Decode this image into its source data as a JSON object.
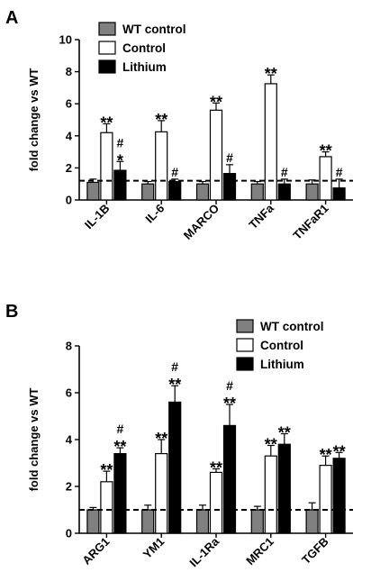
{
  "chart_data": [
    {
      "type": "bar",
      "panel_label": "A",
      "title": "",
      "xlabel": "",
      "ylabel": "fold change vs WT",
      "ylim": [
        0,
        10
      ],
      "yticks": [
        0,
        2,
        4,
        6,
        8,
        10
      ],
      "categories": [
        "IL-1B",
        "IL-6",
        "MARCO",
        "TNFa",
        "TNFaR1"
      ],
      "reference_line": 1.2,
      "legend_position": "top-left",
      "series": [
        {
          "name": "WT control",
          "color": "#808080",
          "values": [
            1.1,
            1.0,
            1.0,
            1.0,
            1.0
          ],
          "errors": [
            0.2,
            0.15,
            0.15,
            0.15,
            0.25
          ]
        },
        {
          "name": "Control",
          "color": "#ffffff",
          "values": [
            4.2,
            4.25,
            5.6,
            7.25,
            2.7
          ],
          "errors": [
            0.55,
            0.7,
            0.45,
            0.55,
            0.3
          ]
        },
        {
          "name": "Lithium",
          "color": "#000000",
          "values": [
            1.85,
            1.15,
            1.65,
            1.0,
            0.75
          ],
          "errors": [
            0.55,
            0.15,
            0.55,
            0.3,
            0.55
          ]
        }
      ],
      "annotations": [
        {
          "category": 0,
          "series": 1,
          "lines": [
            "**"
          ]
        },
        {
          "category": 0,
          "series": 2,
          "lines": [
            "#",
            "*"
          ]
        },
        {
          "category": 1,
          "series": 1,
          "lines": [
            "**"
          ]
        },
        {
          "category": 1,
          "series": 2,
          "lines": [
            "#"
          ]
        },
        {
          "category": 2,
          "series": 1,
          "lines": [
            "**"
          ]
        },
        {
          "category": 2,
          "series": 2,
          "lines": [
            "#"
          ]
        },
        {
          "category": 3,
          "series": 1,
          "lines": [
            "**"
          ]
        },
        {
          "category": 3,
          "series": 2,
          "lines": [
            "#"
          ]
        },
        {
          "category": 4,
          "series": 1,
          "lines": [
            "**"
          ]
        },
        {
          "category": 4,
          "series": 2,
          "lines": [
            "#"
          ]
        }
      ]
    },
    {
      "type": "bar",
      "panel_label": "B",
      "title": "",
      "xlabel": "",
      "ylabel": "fold change vs WT",
      "ylim": [
        0,
        8
      ],
      "yticks": [
        0,
        2,
        4,
        6,
        8
      ],
      "categories": [
        "ARG1",
        "YM1",
        "IL-1Ra",
        "MRC1",
        "TGFB"
      ],
      "reference_line": 1.0,
      "legend_position": "top-right",
      "series": [
        {
          "name": "WT control",
          "color": "#808080",
          "values": [
            1.0,
            1.0,
            1.0,
            1.0,
            1.0
          ],
          "errors": [
            0.1,
            0.2,
            0.2,
            0.15,
            0.3
          ]
        },
        {
          "name": "Control",
          "color": "#ffffff",
          "values": [
            2.2,
            3.4,
            2.6,
            3.3,
            2.9
          ],
          "errors": [
            0.45,
            0.6,
            0.15,
            0.45,
            0.4
          ]
        },
        {
          "name": "Lithium",
          "color": "#000000",
          "values": [
            3.4,
            5.6,
            4.6,
            3.8,
            3.2
          ],
          "errors": [
            0.25,
            0.7,
            0.9,
            0.45,
            0.25
          ]
        }
      ],
      "annotations": [
        {
          "category": 0,
          "series": 1,
          "lines": [
            "**"
          ]
        },
        {
          "category": 0,
          "series": 2,
          "lines": [
            "#",
            "**"
          ]
        },
        {
          "category": 1,
          "series": 1,
          "lines": [
            "**"
          ]
        },
        {
          "category": 1,
          "series": 2,
          "lines": [
            "#",
            "**"
          ]
        },
        {
          "category": 2,
          "series": 1,
          "lines": [
            "**"
          ]
        },
        {
          "category": 2,
          "series": 2,
          "lines": [
            "#",
            "**"
          ]
        },
        {
          "category": 3,
          "series": 1,
          "lines": [
            "**"
          ]
        },
        {
          "category": 3,
          "series": 2,
          "lines": [
            "**"
          ]
        },
        {
          "category": 4,
          "series": 1,
          "lines": [
            "**"
          ]
        },
        {
          "category": 4,
          "series": 2,
          "lines": [
            "**"
          ]
        }
      ]
    }
  ]
}
